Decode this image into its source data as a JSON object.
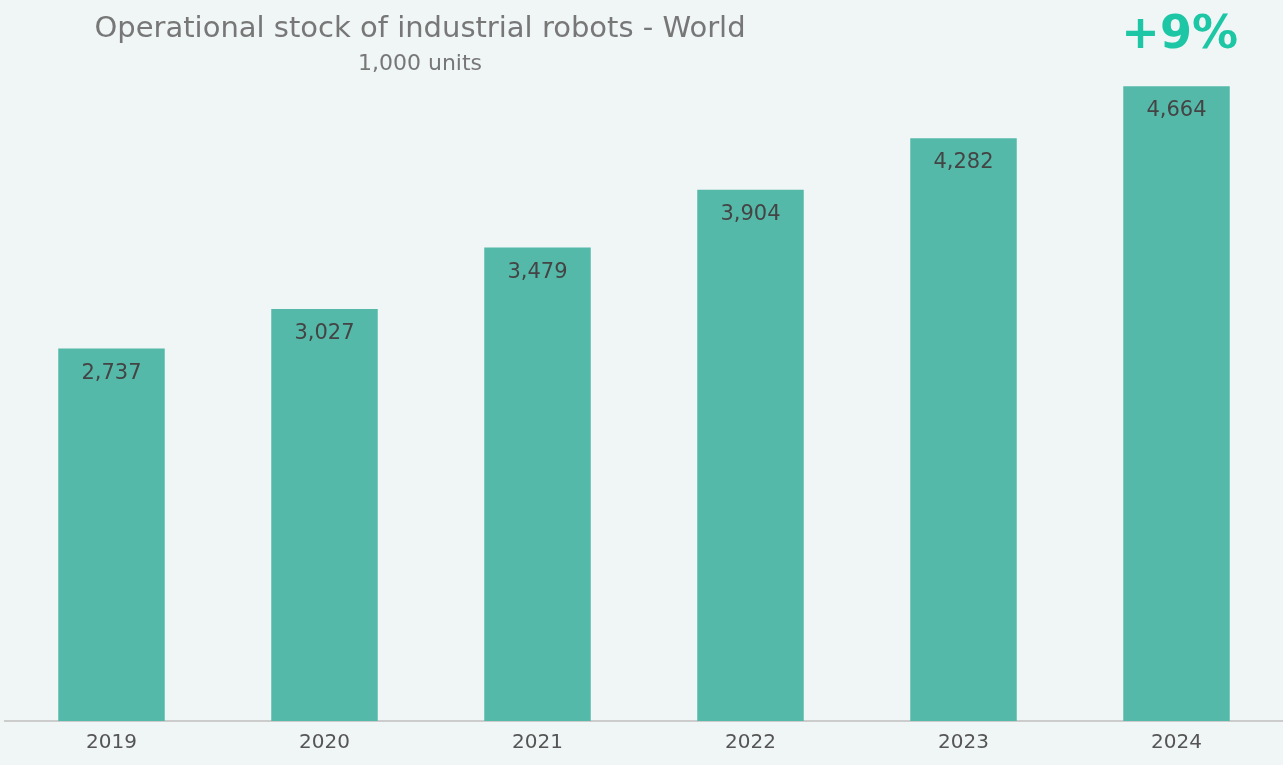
{
  "chart_data": {
    "type": "bar",
    "title": "Operational stock of industrial robots - World",
    "subtitle": "1,000 units",
    "categories": [
      "2019",
      "2020",
      "2021",
      "2022",
      "2023",
      "2024"
    ],
    "values": [
      2737,
      3027,
      3479,
      3904,
      4282,
      4664
    ],
    "color": "#55b9a9",
    "value_labels": [
      "2,737",
      "3,027",
      "3,479",
      "3,904",
      "4,282",
      "4,664"
    ],
    "grid": false,
    "legend": false,
    "annotations": [
      "+9%"
    ]
  }
}
